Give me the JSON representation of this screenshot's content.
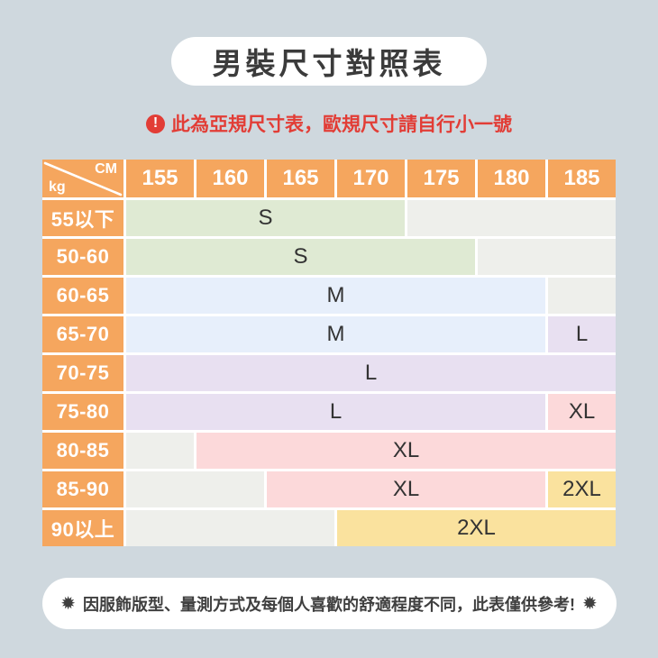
{
  "title": "男裝尺寸對照表",
  "warning": {
    "icon": "!",
    "text": "此為亞規尺寸表，歐規尺寸請自行小一號"
  },
  "table": {
    "corner": {
      "top_label": "CM",
      "bottom_label": "kg"
    },
    "columns": [
      "155",
      "160",
      "165",
      "170",
      "175",
      "180",
      "185"
    ],
    "rows": [
      {
        "label": "55以下",
        "segments": [
          {
            "size": "S",
            "span": 4,
            "color": "green"
          },
          {
            "size": "",
            "span": 3,
            "color": "gray"
          }
        ]
      },
      {
        "label": "50-60",
        "segments": [
          {
            "size": "S",
            "span": 5,
            "color": "green"
          },
          {
            "size": "",
            "span": 2,
            "color": "gray"
          }
        ]
      },
      {
        "label": "60-65",
        "segments": [
          {
            "size": "M",
            "span": 6,
            "color": "blue"
          },
          {
            "size": "",
            "span": 1,
            "color": "gray"
          }
        ]
      },
      {
        "label": "65-70",
        "segments": [
          {
            "size": "M",
            "span": 6,
            "color": "blue"
          },
          {
            "size": "L",
            "span": 1,
            "color": "purple"
          }
        ]
      },
      {
        "label": "70-75",
        "segments": [
          {
            "size": "L",
            "span": 7,
            "color": "purple"
          }
        ]
      },
      {
        "label": "75-80",
        "segments": [
          {
            "size": "L",
            "span": 6,
            "color": "purple"
          },
          {
            "size": "XL",
            "span": 1,
            "color": "pink"
          }
        ]
      },
      {
        "label": "80-85",
        "segments": [
          {
            "size": "",
            "span": 1,
            "color": "gray"
          },
          {
            "size": "XL",
            "span": 6,
            "color": "pink"
          }
        ]
      },
      {
        "label": "85-90",
        "segments": [
          {
            "size": "",
            "span": 2,
            "color": "gray"
          },
          {
            "size": "XL",
            "span": 4,
            "color": "pink"
          },
          {
            "size": "2XL",
            "span": 1,
            "color": "yellow"
          }
        ]
      },
      {
        "label": "90以上",
        "segments": [
          {
            "size": "",
            "span": 3,
            "color": "gray"
          },
          {
            "size": "2XL",
            "span": 4,
            "color": "yellow"
          }
        ]
      }
    ]
  },
  "footer": {
    "star": "✹",
    "text": "因服飾版型、量測方式及每個人喜歡的舒適程度不同，此表僅供參考!"
  },
  "colors": {
    "background": "#cfd8de",
    "header_orange": "#f5a65e",
    "green": "#dfead3",
    "gray": "#eeefeb",
    "blue": "#e7effb",
    "purple": "#e8e0f1",
    "pink": "#fcd9da",
    "yellow": "#fae29e",
    "warning_red": "#e23d36",
    "title_text": "#3b3b3b"
  }
}
